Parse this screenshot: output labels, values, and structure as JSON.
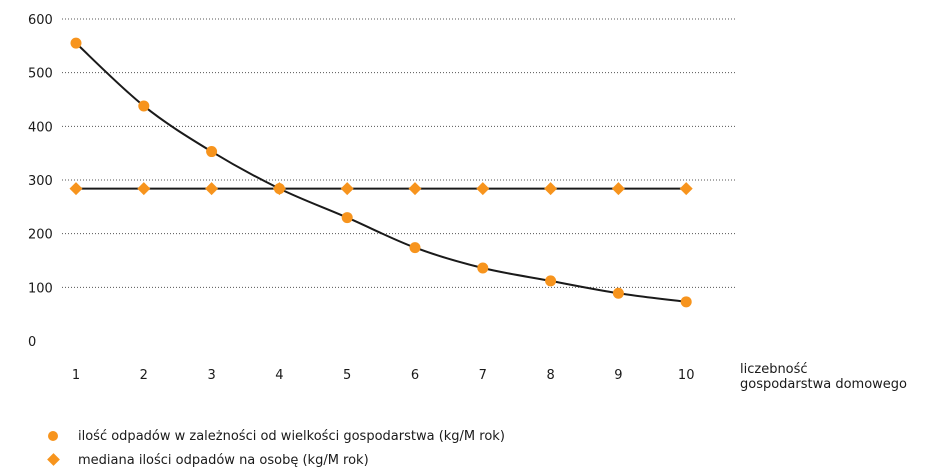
{
  "chart_data": {
    "type": "line",
    "x": [
      1,
      2,
      3,
      4,
      5,
      6,
      7,
      8,
      9,
      10
    ],
    "xlabel": "liczebność gospodarstwa domowego",
    "xlabel_lines": [
      "liczebność",
      "gospodarstwa domowego"
    ],
    "ylim": [
      0,
      600
    ],
    "yticks": [
      0,
      100,
      200,
      300,
      400,
      500,
      600
    ],
    "grid": true,
    "legend_placement": "bottom-left",
    "series": [
      {
        "name": "ilość odpadów w zależności od wielkości  gospodarstwa (kg/M rok)",
        "marker": "circle",
        "color": "#f7941d",
        "line_color": "#1a1a1a",
        "values": [
          555,
          438,
          353,
          284,
          230,
          174,
          136,
          112,
          89,
          73
        ]
      },
      {
        "name": "mediana ilości odpadów na osobę (kg/M rok)",
        "marker": "diamond",
        "color": "#f7941d",
        "line_color": "#1a1a1a",
        "values": [
          284,
          284,
          284,
          284,
          284,
          284,
          284,
          284,
          284,
          284
        ]
      }
    ]
  }
}
